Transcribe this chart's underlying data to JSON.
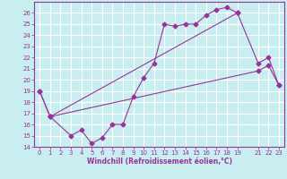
{
  "background_color": "#c8eef0",
  "grid_color": "#b0d8dc",
  "line_color": "#993399",
  "xlabel": "Windchill (Refroidissement éolien,°C)",
  "xlim": [
    -0.5,
    23.5
  ],
  "ylim": [
    14,
    27
  ],
  "xticks": [
    0,
    1,
    2,
    3,
    4,
    5,
    6,
    7,
    8,
    9,
    10,
    11,
    12,
    13,
    14,
    15,
    16,
    17,
    18,
    19,
    21,
    22,
    23
  ],
  "yticks": [
    14,
    15,
    16,
    17,
    18,
    19,
    20,
    21,
    22,
    23,
    24,
    25,
    26
  ],
  "line1_x": [
    0,
    1,
    3,
    4,
    5,
    6,
    7,
    8,
    9,
    10,
    11,
    12,
    13,
    14,
    15,
    16,
    17,
    18,
    19
  ],
  "line1_y": [
    19.0,
    16.7,
    15.0,
    15.5,
    14.3,
    14.8,
    16.0,
    16.0,
    18.5,
    20.2,
    21.5,
    25.0,
    24.8,
    25.0,
    25.0,
    25.8,
    26.3,
    26.5,
    26.0
  ],
  "line2_x": [
    0,
    1,
    19,
    21,
    22,
    23
  ],
  "line2_y": [
    19.0,
    16.7,
    26.0,
    21.5,
    22.0,
    19.5
  ],
  "line3_x": [
    1,
    21,
    22,
    23
  ],
  "line3_y": [
    16.7,
    20.8,
    21.3,
    19.5
  ]
}
